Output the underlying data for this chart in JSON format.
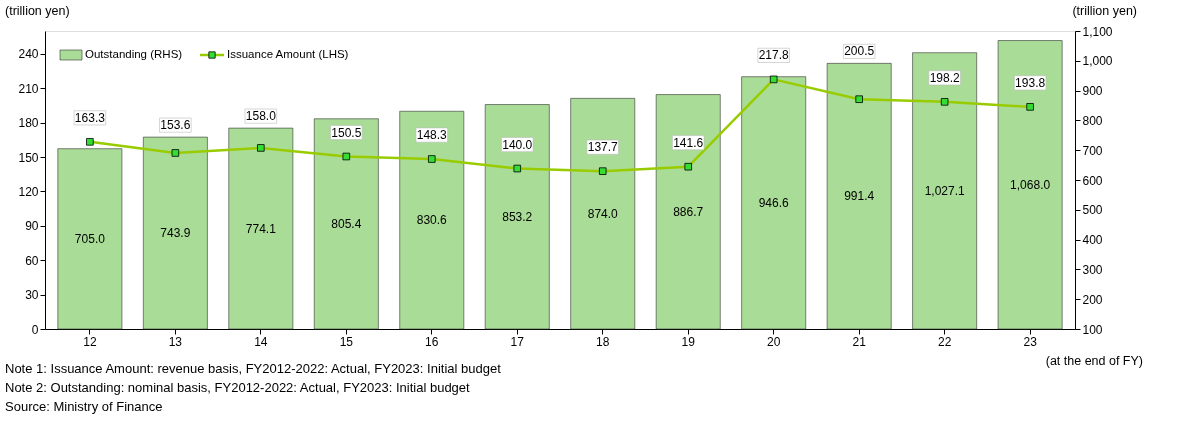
{
  "chart_data": {
    "type": "bar",
    "categories": [
      "12",
      "13",
      "14",
      "15",
      "16",
      "17",
      "18",
      "19",
      "20",
      "21",
      "22",
      "23"
    ],
    "series": [
      {
        "name": "Outstanding (RHS)",
        "axis": "y2",
        "color": "#a9dc96",
        "values": [
          705.0,
          743.9,
          774.1,
          805.4,
          830.6,
          853.2,
          874.0,
          886.7,
          946.6,
          991.4,
          1027.1,
          1068.0
        ],
        "value_labels": [
          "705.0",
          "743.9",
          "774.1",
          "805.4",
          "830.6",
          "853.2",
          "874.0",
          "886.7",
          "946.6",
          "991.4",
          "1,027.1",
          "1,068.0"
        ]
      },
      {
        "name": "Issuance Amount (LHS)",
        "type": "line",
        "color": "#99cc00",
        "values": [
          163.3,
          153.6,
          158.0,
          150.5,
          148.3,
          140.0,
          137.7,
          141.6,
          217.8,
          200.5,
          198.2,
          193.8
        ],
        "value_labels": [
          "163.3",
          "153.6",
          "158.0",
          "150.5",
          "148.3",
          "140.0",
          "137.7",
          "141.6",
          "217.8",
          "200.5",
          "198.2",
          "193.8"
        ]
      }
    ],
    "ylim": [
      0,
      260
    ],
    "yticks": [
      0,
      30,
      60,
      90,
      120,
      150,
      180,
      210,
      240
    ],
    "y2lim": [
      100,
      1100
    ],
    "y2ticks": [
      100,
      200,
      300,
      400,
      500,
      600,
      700,
      800,
      900,
      {
        "value": 1000,
        "label": "1,000"
      },
      {
        "value": 1100,
        "label": "1,100"
      }
    ],
    "ylabel": "(trillion yen)",
    "y2label": "(trillion yen)",
    "xlabel": "(at the end of FY)",
    "marker": "square",
    "grid": false,
    "legend": "top left",
    "annotations": [
      "Note 1: Issuance Amount: revenue basis, FY2012-2022: Actual, FY2023: Initial budget",
      "Note 2: Outstanding: nominal basis, FY2012-2022: Actual, FY2023: Initial budget",
      "Source: Ministry of Finance"
    ]
  }
}
